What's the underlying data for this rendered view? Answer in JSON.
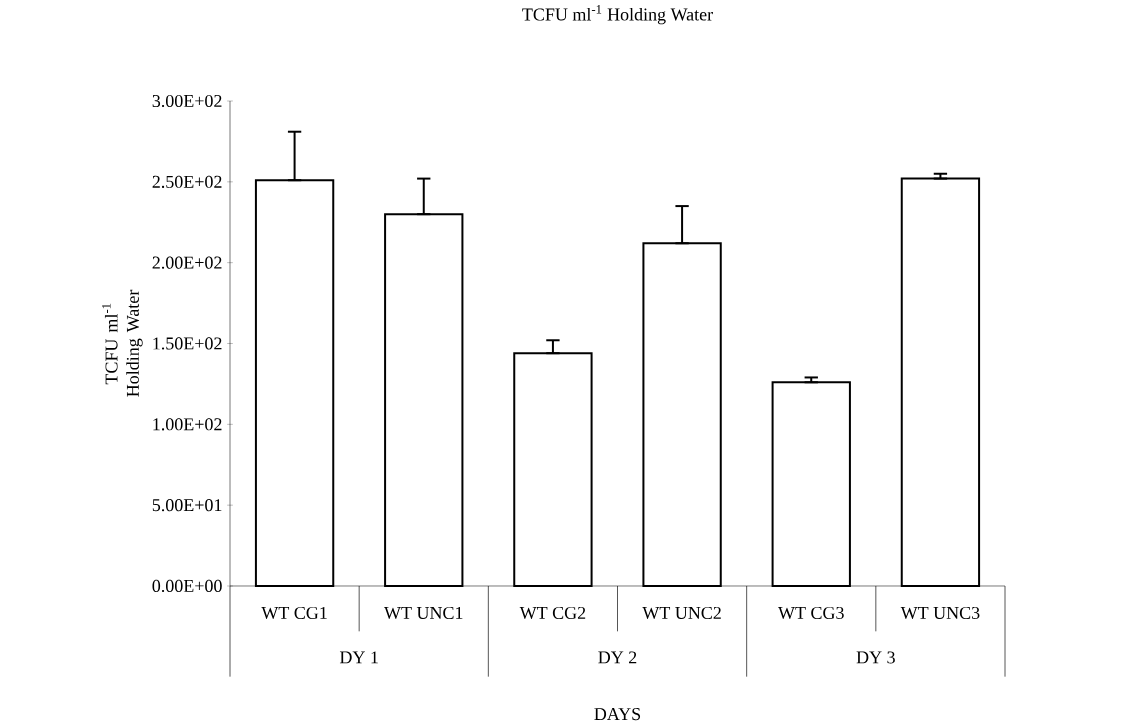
{
  "chart_data": {
    "type": "bar",
    "title": "TCFU ml$^{-1}$ Holding Water",
    "xlabel": "DAYS",
    "ylabel": "TCFU ml$^{-1}$ Holding Water",
    "categories": [
      "WT CG1",
      "WT UNC1",
      "WT CG2",
      "WT UNC2",
      "WT CG3",
      "WT UNC3"
    ],
    "values": [
      251,
      230,
      144,
      212,
      126,
      252
    ],
    "errors": [
      [
        251,
        281
      ],
      [
        230,
        252
      ],
      [
        144,
        152
      ],
      [
        212,
        235
      ],
      [
        126,
        129
      ],
      [
        252,
        255
      ]
    ],
    "color": "#ffffff",
    "annotations": [
      "DY 1",
      "DY 2",
      "DY 3"
    ],
    "ylim": [
      0,
      300
    ],
    "yticks": [
      {
        "value": 0,
        "label": "0.00E+00"
      },
      {
        "value": 50,
        "label": "5.00E+01"
      },
      {
        "value": 100,
        "label": "1.00E+02"
      },
      {
        "value": 150,
        "label": "1.50E+02"
      },
      {
        "value": 200,
        "label": "2.00E+02"
      },
      {
        "value": 250,
        "label": "2.50E+02"
      },
      {
        "value": 300,
        "label": "3.00E+02"
      }
    ],
    "grid": false
  }
}
